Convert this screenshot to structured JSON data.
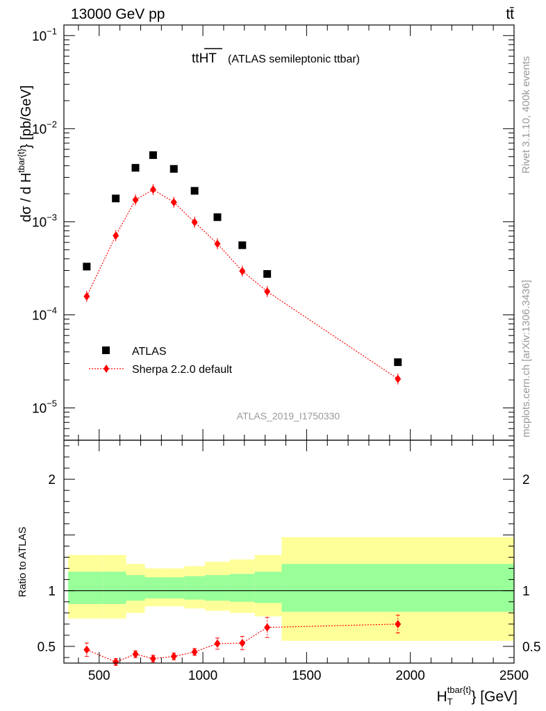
{
  "header": {
    "energy_label": "13000 GeV pp",
    "process_label": "tt̄"
  },
  "side_labels": {
    "rivet": "Rivet 3.1.10,  400k events",
    "mcplots": "mcplots.cern.ch [arXiv:1306.3436]"
  },
  "legend": {
    "atlas_label": "ATLAS",
    "mc_label": "Sherpa 2.2.0 default"
  },
  "analysis_id": "ATLAS_2019_I1750330",
  "colors": {
    "data": "#000000",
    "mc": "#ff0000",
    "band_inner": "#99ff99",
    "band_outer": "#ffff99",
    "watermark": "#999999"
  },
  "chart_data": [
    {
      "type": "scatter",
      "panel": "main",
      "title_main": "tt",
      "title_over": "HT",
      "title_suffix": "(ATLAS semileptonic ttbar)",
      "ylabel": "dσ / d H_T^{tbar{t}} [pb/GeV]",
      "yscale": "log",
      "ylim": [
        4.5e-06,
        0.13
      ],
      "xlim": [
        330,
        2500
      ],
      "ytick_labels": [
        {
          "value": 0.1,
          "base": "10",
          "exp": "−1"
        },
        {
          "value": 0.01,
          "base": "10",
          "exp": "−2"
        },
        {
          "value": 0.001,
          "base": "10",
          "exp": "−3"
        },
        {
          "value": 0.0001,
          "base": "10",
          "exp": "−4"
        },
        {
          "value": 1e-05,
          "base": "10",
          "exp": "−5"
        }
      ],
      "series": [
        {
          "name": "ATLAS",
          "marker": "square",
          "x": [
            440,
            580,
            675,
            760,
            860,
            960,
            1070,
            1190,
            1310,
            1940
          ],
          "y": [
            0.00033,
            0.00178,
            0.0038,
            0.0052,
            0.0037,
            0.00215,
            0.00112,
            0.00056,
            0.000275,
            3.1e-05
          ]
        },
        {
          "name": "Sherpa 2.2.0 default",
          "marker": "diamond",
          "x": [
            440,
            580,
            675,
            760,
            860,
            960,
            1070,
            1190,
            1310,
            1940
          ],
          "y": [
            0.000158,
            0.00071,
            0.00172,
            0.00222,
            0.00162,
            0.00099,
            0.00058,
            0.000295,
            0.000178,
            2.05e-05
          ]
        }
      ]
    },
    {
      "type": "line",
      "panel": "ratio",
      "ylabel": "Ratio to ATLAS",
      "xlabel": "H_T^{tbar{t}} [GeV]",
      "xlabel_main": "H",
      "xlabel_sub": "T",
      "xlabel_sup": "tbar{t}",
      "xlabel_suffix": "} [GeV]",
      "ylim": [
        0.35,
        2.35
      ],
      "xlim": [
        330,
        2500
      ],
      "x_ticks": [
        500,
        1000,
        1500,
        2000,
        2500
      ],
      "x_tick_labels": [
        "500",
        "1000",
        "1500",
        "2000",
        "2500"
      ],
      "y_ticks": [
        0.5,
        1,
        2
      ],
      "y_tick_labels": [
        "0.5",
        "1",
        "2"
      ],
      "bands": {
        "edges": [
          350,
          520,
          630,
          720,
          800,
          910,
          1010,
          1130,
          1250,
          1380,
          2500
        ],
        "inner_low": [
          0.88,
          0.88,
          0.91,
          0.93,
          0.93,
          0.92,
          0.91,
          0.9,
          0.89,
          0.81
        ],
        "inner_high": [
          1.17,
          1.17,
          1.14,
          1.12,
          1.12,
          1.13,
          1.14,
          1.15,
          1.17,
          1.24
        ],
        "outer_low": [
          0.75,
          0.75,
          0.8,
          0.86,
          0.86,
          0.84,
          0.82,
          0.8,
          0.77,
          0.55
        ],
        "outer_high": [
          1.32,
          1.32,
          1.24,
          1.2,
          1.2,
          1.22,
          1.26,
          1.28,
          1.32,
          1.48
        ]
      },
      "series": [
        {
          "name": "Sherpa 2.2.0 default",
          "x": [
            440,
            580,
            675,
            760,
            860,
            960,
            1070,
            1190,
            1310,
            1940
          ],
          "y": [
            0.47,
            0.36,
            0.43,
            0.39,
            0.41,
            0.45,
            0.525,
            0.53,
            0.67,
            0.7
          ],
          "err": [
            0.06,
            0.03,
            0.03,
            0.03,
            0.03,
            0.03,
            0.05,
            0.06,
            0.09,
            0.08
          ]
        }
      ]
    }
  ]
}
